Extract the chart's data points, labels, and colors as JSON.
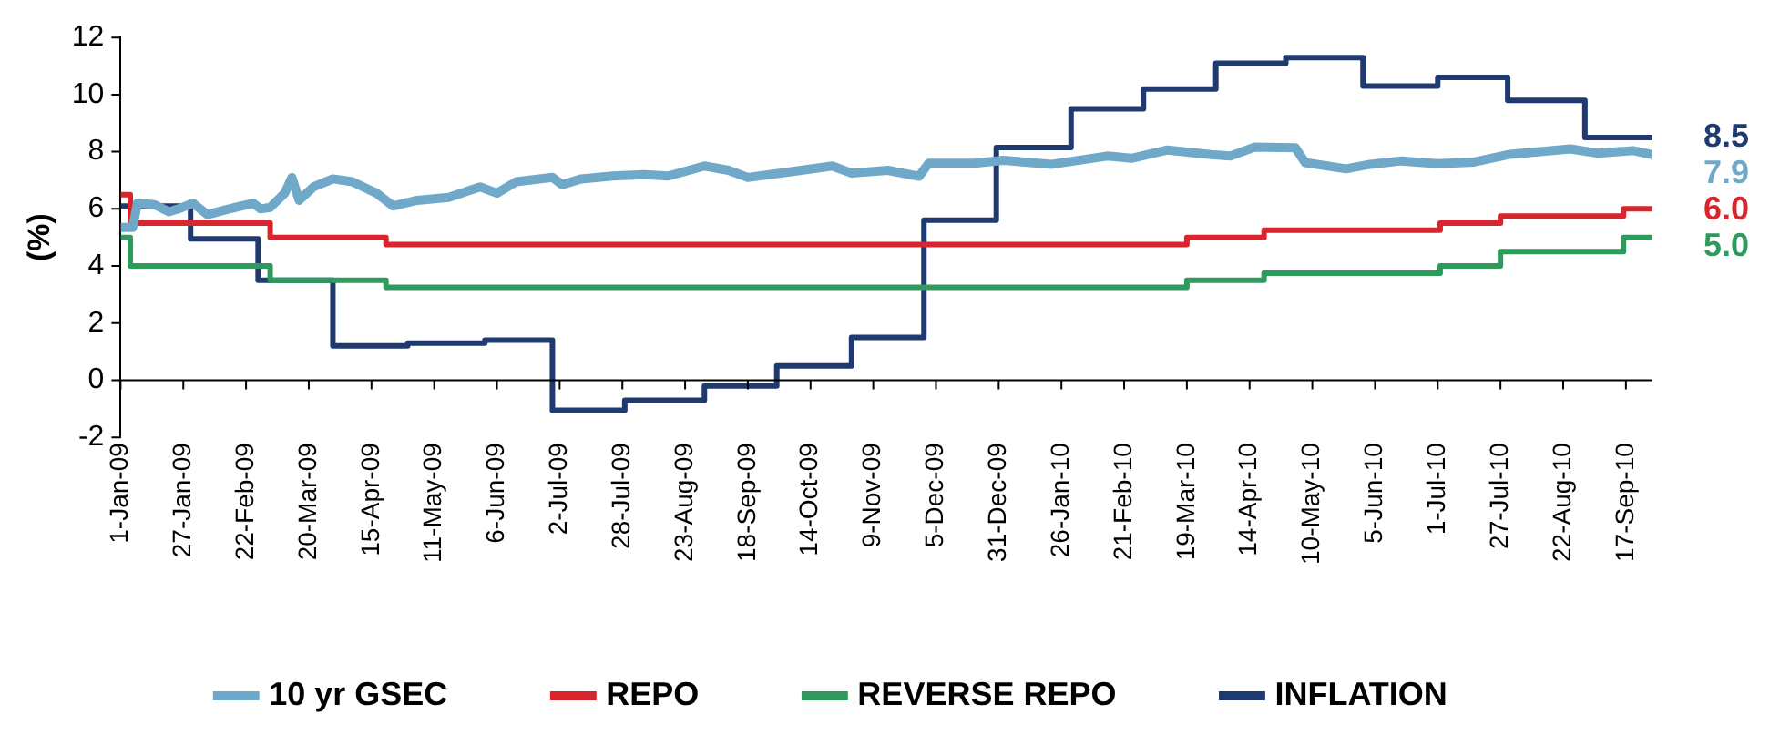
{
  "chart_data": {
    "type": "step",
    "ylabel": "(%)",
    "xlim": [
      "2009-01-01",
      "2010-09-28"
    ],
    "xticks": [
      {
        "value": "2009-01-01",
        "label": "1-Jan-09"
      },
      {
        "value": "2009-01-27",
        "label": "27-Jan-09"
      },
      {
        "value": "2009-02-22",
        "label": "22-Feb-09"
      },
      {
        "value": "2009-03-20",
        "label": "20-Mar-09"
      },
      {
        "value": "2009-04-15",
        "label": "15-Apr-09"
      },
      {
        "value": "2009-05-11",
        "label": "11-May-09"
      },
      {
        "value": "2009-06-06",
        "label": "6-Jun-09"
      },
      {
        "value": "2009-07-02",
        "label": "2-Jul-09"
      },
      {
        "value": "2009-07-28",
        "label": "28-Jul-09"
      },
      {
        "value": "2009-08-23",
        "label": "23-Aug-09"
      },
      {
        "value": "2009-09-18",
        "label": "18-Sep-09"
      },
      {
        "value": "2009-10-14",
        "label": "14-Oct-09"
      },
      {
        "value": "2009-11-09",
        "label": "9-Nov-09"
      },
      {
        "value": "2009-12-05",
        "label": "5-Dec-09"
      },
      {
        "value": "2009-12-31",
        "label": "31-Dec-09"
      },
      {
        "value": "2010-01-26",
        "label": "26-Jan-10"
      },
      {
        "value": "2010-02-21",
        "label": "21-Feb-10"
      },
      {
        "value": "2010-03-19",
        "label": "19-Mar-10"
      },
      {
        "value": "2010-04-14",
        "label": "14-Apr-10"
      },
      {
        "value": "2010-05-10",
        "label": "10-May-10"
      },
      {
        "value": "2010-06-05",
        "label": "5-Jun-10"
      },
      {
        "value": "2010-07-01",
        "label": "1-Jul-10"
      },
      {
        "value": "2010-07-27",
        "label": "27-Jul-10"
      },
      {
        "value": "2010-08-22",
        "label": "22-Aug-10"
      },
      {
        "value": "2010-09-17",
        "label": "17-Sep-10"
      }
    ],
    "ylim": [
      -2,
      12
    ],
    "yticks": [
      -2,
      0,
      2,
      4,
      6,
      8,
      10,
      12
    ],
    "grid": false,
    "legend": "bottom",
    "series": [
      {
        "name": "10 yr GSEC",
        "type": "line",
        "color": "#6fa8c8",
        "x": [
          "2009-01-01",
          "2009-01-06",
          "2009-01-08",
          "2009-01-15",
          "2009-01-21",
          "2009-01-25",
          "2009-01-31",
          "2009-02-06",
          "2009-02-15",
          "2009-02-25",
          "2009-02-28",
          "2009-03-04",
          "2009-03-10",
          "2009-03-13",
          "2009-03-16",
          "2009-03-22",
          "2009-03-30",
          "2009-04-07",
          "2009-04-17",
          "2009-04-24",
          "2009-05-04",
          "2009-05-17",
          "2009-05-30",
          "2009-06-06",
          "2009-06-14",
          "2009-06-29",
          "2009-07-03",
          "2009-07-11",
          "2009-07-24",
          "2009-08-06",
          "2009-08-16",
          "2009-08-31",
          "2009-09-10",
          "2009-09-18",
          "2009-10-06",
          "2009-10-23",
          "2009-10-31",
          "2009-11-15",
          "2009-11-28",
          "2009-12-02",
          "2009-12-21",
          "2010-01-02",
          "2010-01-22",
          "2010-02-14",
          "2010-02-24",
          "2010-03-11",
          "2010-03-29",
          "2010-04-06",
          "2010-04-16",
          "2010-05-03",
          "2010-05-07",
          "2010-05-24",
          "2010-06-03",
          "2010-06-16",
          "2010-07-01",
          "2010-07-16",
          "2010-07-31",
          "2010-08-25",
          "2010-09-05",
          "2010-09-20",
          "2010-09-28"
        ],
        "values": [
          5.35,
          5.35,
          6.2,
          6.15,
          5.9,
          6.0,
          6.2,
          5.8,
          6.0,
          6.2,
          6.0,
          6.05,
          6.55,
          7.1,
          6.3,
          6.77,
          7.05,
          6.95,
          6.55,
          6.1,
          6.3,
          6.4,
          6.77,
          6.55,
          6.95,
          7.1,
          6.85,
          7.05,
          7.15,
          7.2,
          7.15,
          7.5,
          7.35,
          7.1,
          7.3,
          7.5,
          7.25,
          7.35,
          7.14,
          7.6,
          7.6,
          7.7,
          7.56,
          7.85,
          7.77,
          8.06,
          7.9,
          7.85,
          8.16,
          8.14,
          7.62,
          7.4,
          7.56,
          7.68,
          7.58,
          7.64,
          7.91,
          8.1,
          7.95,
          8.04,
          7.9
        ],
        "value_labels": [
          null,
          null,
          null,
          null,
          null,
          null,
          null,
          null,
          null,
          null,
          null,
          null,
          null,
          null,
          null,
          null,
          null,
          null,
          null,
          null,
          null,
          null,
          null,
          null,
          null,
          null,
          null,
          null,
          null,
          null,
          null,
          null,
          null,
          null,
          null,
          null,
          null,
          null,
          null,
          null,
          null,
          null,
          null,
          null,
          null,
          null,
          null,
          null,
          null,
          null,
          null,
          null,
          null,
          null,
          null,
          null,
          null,
          null,
          null,
          null,
          "7.9"
        ]
      },
      {
        "name": "REPO",
        "color": "#d7262e",
        "x": [
          "2009-01-01",
          "2009-01-05",
          "2009-03-04",
          "2009-04-21",
          "2010-03-19",
          "2010-04-20",
          "2010-07-02",
          "2010-07-27",
          "2010-09-16",
          "2010-09-28"
        ],
        "values": [
          6.5,
          5.5,
          5.0,
          4.75,
          5.0,
          5.25,
          5.5,
          5.75,
          6.0,
          6.0
        ],
        "value_labels": [
          null,
          null,
          null,
          null,
          null,
          null,
          null,
          null,
          null,
          "6.0"
        ]
      },
      {
        "name": "REVERSE REPO",
        "color": "#2e9a5c",
        "x": [
          "2009-01-01",
          "2009-01-05",
          "2009-03-04",
          "2009-04-21",
          "2010-03-19",
          "2010-04-20",
          "2010-07-02",
          "2010-07-27",
          "2010-09-16",
          "2010-09-28"
        ],
        "values": [
          5.0,
          4.0,
          3.5,
          3.25,
          3.5,
          3.75,
          4.0,
          4.5,
          5.0,
          5.0
        ],
        "value_labels": [
          null,
          null,
          null,
          null,
          null,
          null,
          null,
          null,
          null,
          "5.0"
        ]
      },
      {
        "name": "INFLATION",
        "color": "#1f3a6e",
        "x": [
          "2009-01-01",
          "2009-01-30",
          "2009-02-27",
          "2009-03-30",
          "2009-04-30",
          "2009-06-01",
          "2009-06-29",
          "2009-07-29",
          "2009-08-31",
          "2009-09-30",
          "2009-10-31",
          "2009-11-30",
          "2009-12-30",
          "2010-01-30",
          "2010-03-01",
          "2010-03-31",
          "2010-04-29",
          "2010-05-31",
          "2010-07-01",
          "2010-07-30",
          "2010-08-31",
          "2010-09-28"
        ],
        "values": [
          6.1,
          4.95,
          3.5,
          1.2,
          1.3,
          1.4,
          -1.05,
          -0.7,
          -0.2,
          0.5,
          1.5,
          5.6,
          8.15,
          9.5,
          10.2,
          11.1,
          11.3,
          10.3,
          10.6,
          9.8,
          8.5,
          8.5
        ],
        "value_labels": [
          null,
          null,
          null,
          null,
          null,
          null,
          null,
          null,
          null,
          null,
          null,
          null,
          null,
          null,
          null,
          null,
          null,
          null,
          null,
          null,
          null,
          "8.5"
        ]
      }
    ]
  }
}
